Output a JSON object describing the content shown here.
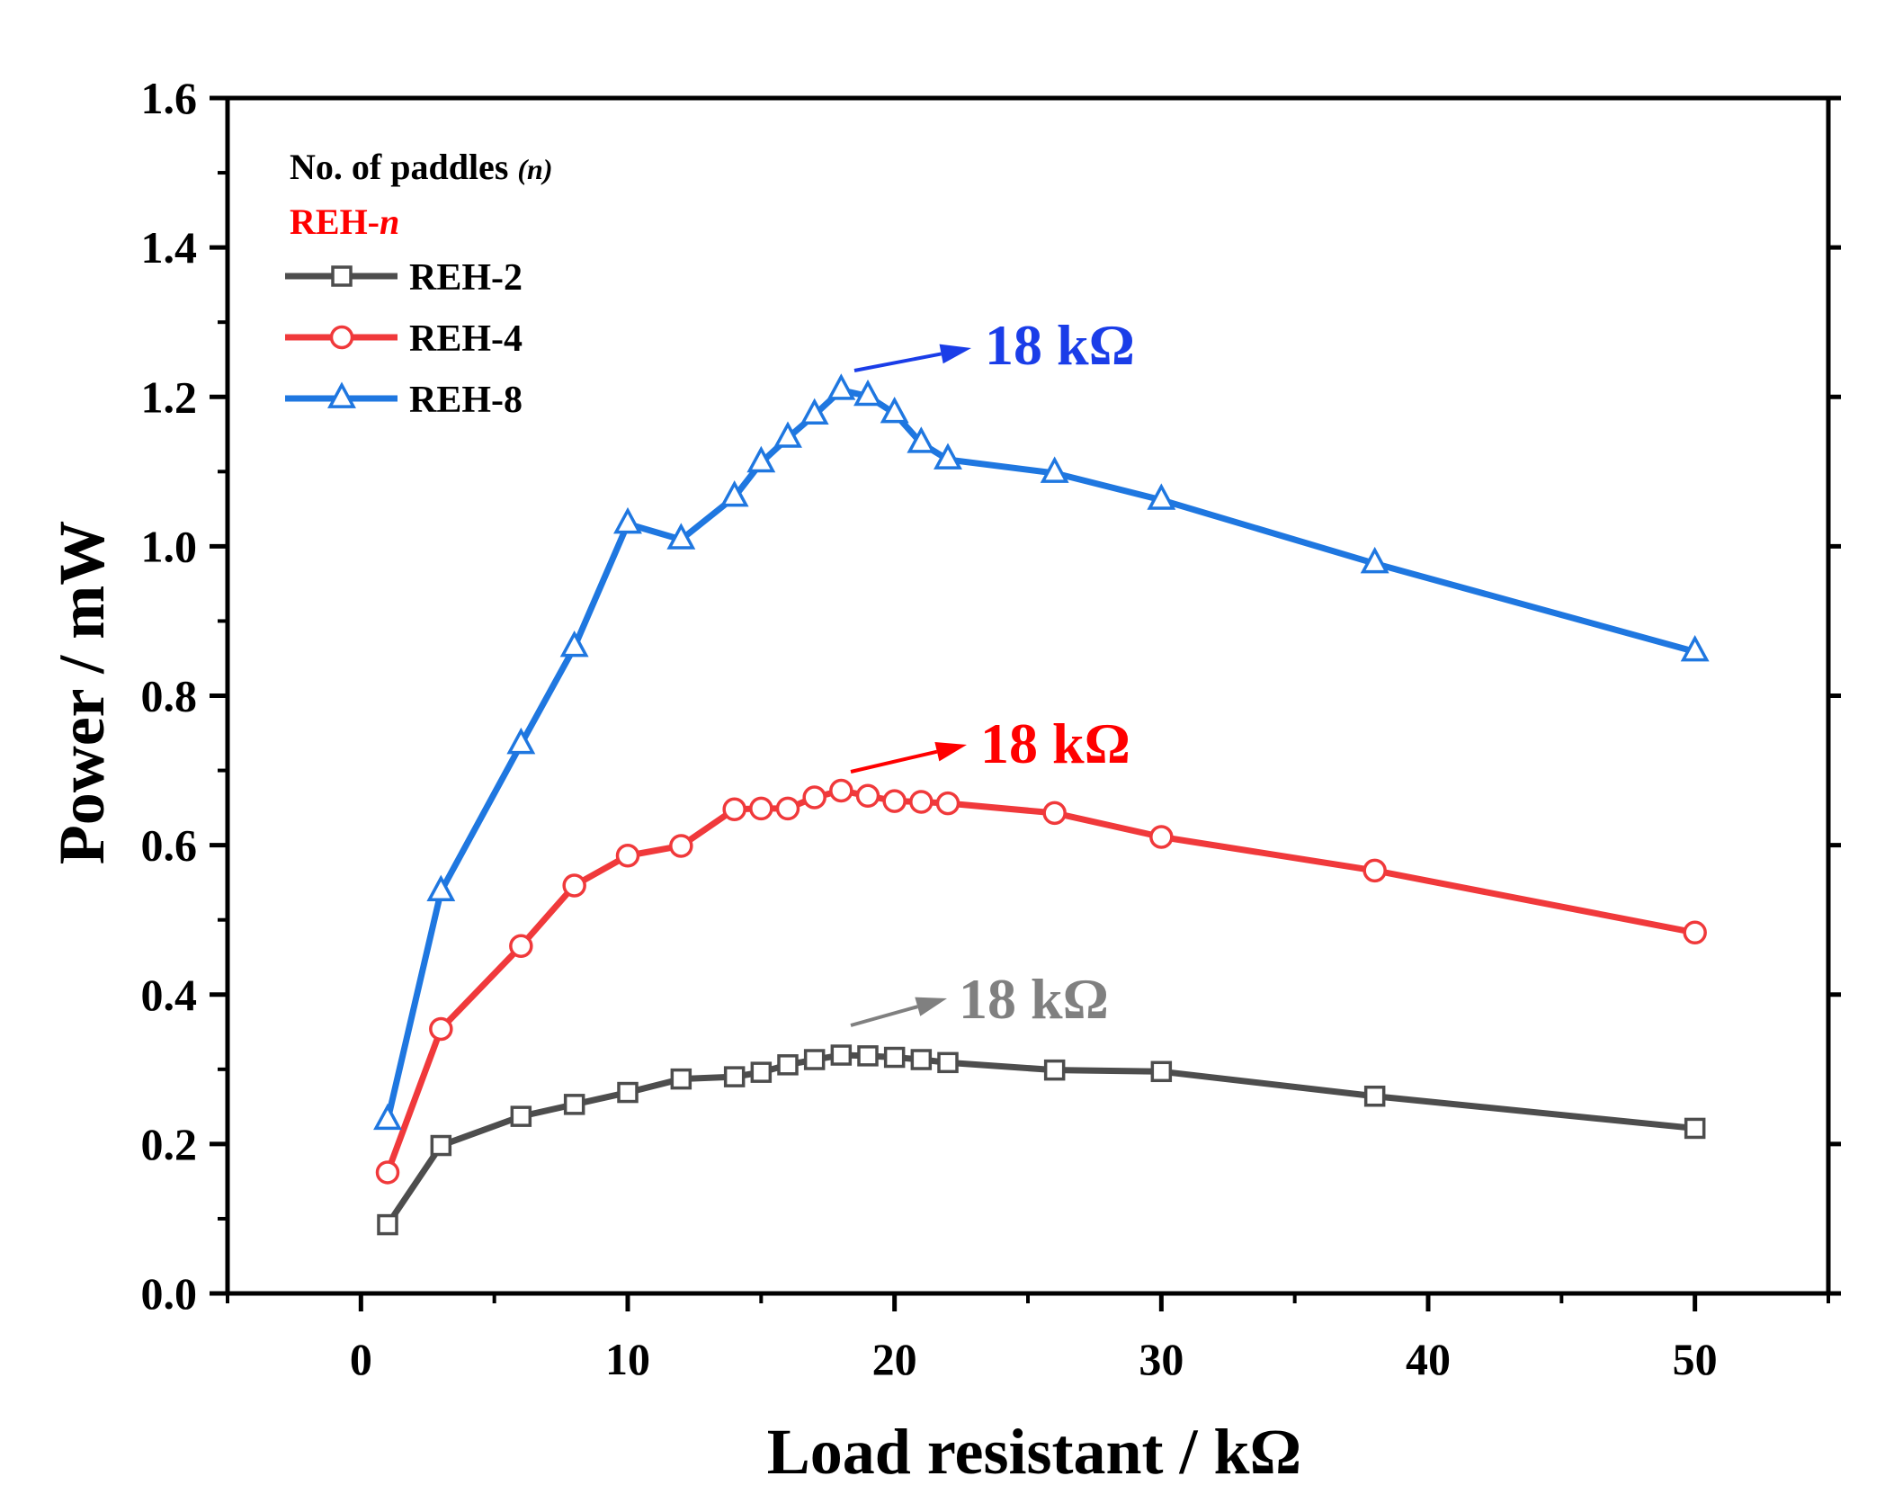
{
  "chart_data": {
    "type": "line",
    "title": "",
    "xlabel": "Load resistant / kΩ",
    "ylabel": "Power / mW",
    "xlim": [
      -5,
      55
    ],
    "ylim": [
      0,
      1.6
    ],
    "x_ticks": [
      0,
      10,
      20,
      30,
      40,
      50
    ],
    "x_tick_labels": [
      "0",
      "10",
      "20",
      "30",
      "40",
      "50"
    ],
    "y_ticks": [
      0,
      0.2,
      0.4,
      0.6,
      0.8,
      1.0,
      1.2,
      1.4,
      1.6
    ],
    "y_tick_labels": [
      "0.0",
      "0.2",
      "0.4",
      "0.6",
      "0.8",
      "1.0",
      "1.2",
      "1.4",
      "1.6"
    ],
    "legend": {
      "heading_prefix": "No. of paddles ",
      "heading_var": "(n)",
      "subheading_prefix": "REH-",
      "subheading_var": "n",
      "subheading_color": "#ff0000",
      "position": "top-left"
    },
    "series": [
      {
        "name": "REH-2",
        "color": "#4d4d4d",
        "marker": "square",
        "x": [
          1,
          3,
          6,
          8,
          10,
          12,
          14,
          15,
          16,
          17,
          18,
          19,
          20,
          21,
          22,
          26,
          30,
          38,
          50
        ],
        "values": [
          0.092,
          0.198,
          0.237,
          0.253,
          0.269,
          0.287,
          0.29,
          0.296,
          0.306,
          0.313,
          0.319,
          0.318,
          0.316,
          0.313,
          0.309,
          0.299,
          0.297,
          0.264,
          0.221
        ]
      },
      {
        "name": "REH-4",
        "color": "#f0393b",
        "marker": "circle",
        "x": [
          1,
          3,
          6,
          8,
          10,
          12,
          14,
          15,
          16,
          17,
          18,
          19,
          20,
          21,
          22,
          26,
          30,
          38,
          50
        ],
        "values": [
          0.162,
          0.354,
          0.465,
          0.546,
          0.586,
          0.599,
          0.648,
          0.649,
          0.649,
          0.664,
          0.673,
          0.666,
          0.659,
          0.658,
          0.656,
          0.643,
          0.611,
          0.566,
          0.483
        ]
      },
      {
        "name": "REH-8",
        "color": "#1f77e0",
        "marker": "triangle",
        "x": [
          1,
          3,
          6,
          8,
          10,
          12,
          14,
          15,
          16,
          17,
          18,
          19,
          20,
          21,
          22,
          26,
          30,
          38,
          50
        ],
        "values": [
          0.232,
          0.538,
          0.735,
          0.865,
          1.03,
          1.009,
          1.066,
          1.112,
          1.145,
          1.176,
          1.209,
          1.201,
          1.178,
          1.138,
          1.116,
          1.098,
          1.062,
          0.977,
          0.859
        ]
      }
    ],
    "annotations": [
      {
        "text": "18 kΩ",
        "color": "#1a3de8",
        "arrow_color": "#1a3de8",
        "series": "REH-8",
        "point_x": 18
      },
      {
        "text": "18 kΩ",
        "color": "#ff0000",
        "arrow_color": "#ff0000",
        "series": "REH-4",
        "point_x": 18
      },
      {
        "text": "18 kΩ",
        "color": "#808080",
        "arrow_color": "#808080",
        "series": "REH-2",
        "point_x": 18
      }
    ]
  }
}
